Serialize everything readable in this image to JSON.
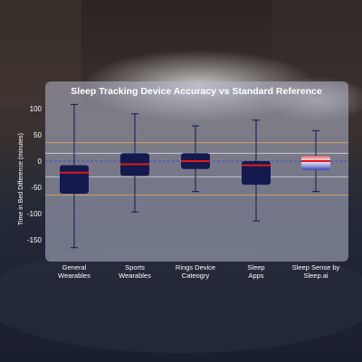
{
  "chart_data": {
    "type": "box",
    "title": "Sleep Tracking Device Accuracy vs Standard Reference",
    "ylabel": "Time in Bed Difference (minutes)",
    "ylim": [
      -170,
      110
    ],
    "yticks": [
      100,
      50,
      0,
      -50,
      -100,
      -150
    ],
    "grid": false,
    "reference_lines": [
      {
        "value": 0,
        "style": "dashed",
        "color": "#3b4fd4"
      },
      {
        "value": 35,
        "style": "solid",
        "color": "#e0a060"
      },
      {
        "value": 15,
        "style": "solid",
        "color": "#cfcfe6"
      },
      {
        "value": -30,
        "style": "solid",
        "color": "#cfcfe6"
      },
      {
        "value": -65,
        "style": "solid",
        "color": "#e0a060"
      }
    ],
    "categories": [
      [
        "General",
        "Wearables"
      ],
      [
        "Sports",
        "Wearables"
      ],
      [
        "Rings Device",
        "Cateogry"
      ],
      [
        "Sleep",
        "Apps"
      ],
      [
        "Sleep Sense by",
        "Sleep.ai"
      ]
    ],
    "boxes": [
      {
        "min": -165,
        "q1": -62,
        "median": -22,
        "q3": -8,
        "max": 108,
        "style": "dark"
      },
      {
        "min": -97,
        "q1": -28,
        "median": -6,
        "q3": 15,
        "max": 90,
        "style": "dark"
      },
      {
        "min": -58,
        "q1": -15,
        "median": 0,
        "q3": 15,
        "max": 67,
        "style": "dark"
      },
      {
        "min": -114,
        "q1": -45,
        "median": -8,
        "q3": 0,
        "max": 78,
        "style": "dark"
      },
      {
        "min": -58,
        "q1": -17,
        "median": 0,
        "q3": 10,
        "max": 58,
        "style": "gradient"
      }
    ]
  },
  "colors": {
    "panel": "#b4b8ce",
    "box_fill": "#141a4e",
    "median": "#e01818",
    "whisker": "#141a4e"
  }
}
